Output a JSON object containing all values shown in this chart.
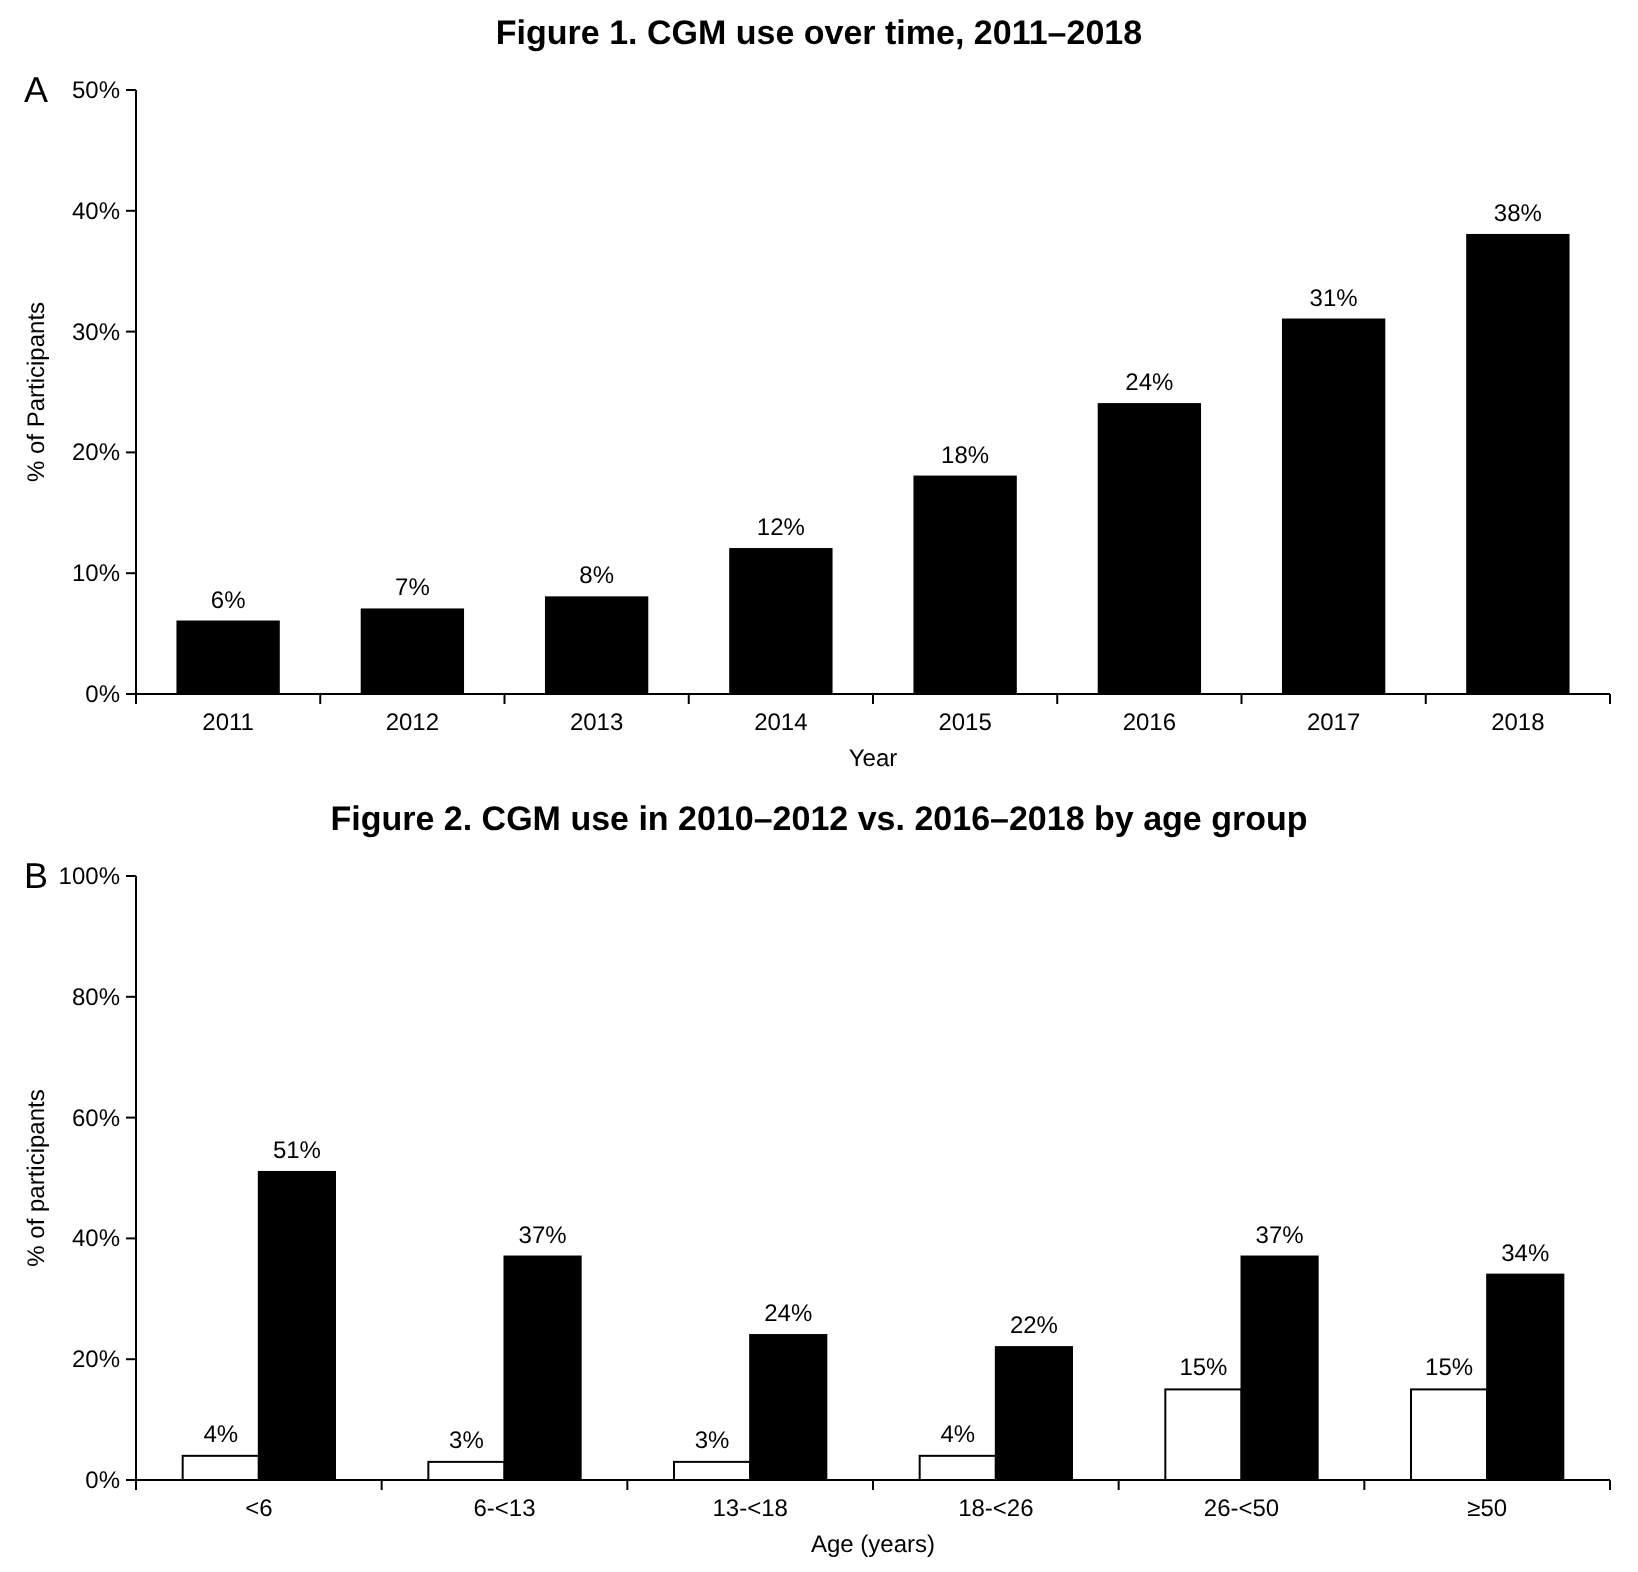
{
  "chart_data": [
    {
      "type": "bar",
      "title": "Figure 1. CGM use over time, 2011–2018",
      "annotations": [
        "A"
      ],
      "xlabel": "Year",
      "ylabel": "% of Participants",
      "categories": [
        "2011",
        "2012",
        "2013",
        "2014",
        "2015",
        "2016",
        "2017",
        "2018"
      ],
      "series": [
        {
          "color": "#000000",
          "values": [
            6,
            7,
            8,
            12,
            18,
            24,
            31,
            38
          ],
          "value_labels": [
            "6%",
            "7%",
            "8%",
            "12%",
            "18%",
            "24%",
            "31%",
            "38%"
          ]
        }
      ],
      "ylim": [
        0,
        50
      ],
      "yticks": [
        {
          "value": 0,
          "label": "0%"
        },
        {
          "value": 10,
          "label": "10%"
        },
        {
          "value": 20,
          "label": "20%"
        },
        {
          "value": 30,
          "label": "30%"
        },
        {
          "value": 40,
          "label": "40%"
        },
        {
          "value": 50,
          "label": "50%"
        }
      ],
      "grid": false
    },
    {
      "type": "bar",
      "title": "Figure 2. CGM use in 2010–2012 vs. 2016–2018 by age group",
      "annotations": [
        "B"
      ],
      "xlabel": "Age (years)",
      "ylabel": "% of participants",
      "categories": [
        "<6",
        "6-<13",
        "13-<18",
        "18-<26",
        "26-<50",
        "≥50"
      ],
      "series": [
        {
          "color": "#ffffff",
          "values": [
            4,
            3,
            3,
            4,
            15,
            15
          ],
          "value_labels": [
            "4%",
            "3%",
            "3%",
            "4%",
            "15%",
            "15%"
          ]
        },
        {
          "color": "#000000",
          "values": [
            51,
            37,
            24,
            22,
            37,
            34
          ],
          "value_labels": [
            "51%",
            "37%",
            "24%",
            "22%",
            "37%",
            "34%"
          ]
        }
      ],
      "ylim": [
        0,
        100
      ],
      "yticks": [
        {
          "value": 0,
          "label": "0%"
        },
        {
          "value": 20,
          "label": "20%"
        },
        {
          "value": 40,
          "label": "40%"
        },
        {
          "value": 60,
          "label": "60%"
        },
        {
          "value": 80,
          "label": "80%"
        },
        {
          "value": 100,
          "label": "100%"
        }
      ],
      "grid": false
    }
  ]
}
